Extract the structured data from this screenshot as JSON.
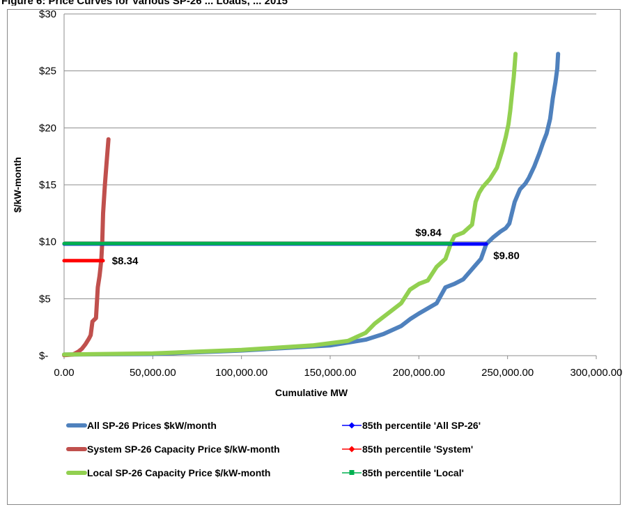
{
  "header": {
    "title_fragment": "Figure 6:  Price Curves for Various SP-26 ... Loads, ... 2015"
  },
  "chart_data": {
    "type": "line",
    "title": "",
    "xlabel": "Cumulative MW",
    "ylabel": "$/kW-month",
    "xlim": [
      0,
      300000
    ],
    "ylim": [
      0,
      30
    ],
    "x_ticks": [
      0,
      50000,
      100000,
      150000,
      200000,
      250000,
      300000
    ],
    "x_tick_labels": [
      "0.00",
      "50,000.00",
      "100,000.00",
      "150,000.00",
      "200,000.00",
      "250,000.00",
      "300,000.00"
    ],
    "y_ticks": [
      0,
      5,
      10,
      15,
      20,
      25,
      30
    ],
    "y_tick_labels": [
      "$-",
      "$5",
      "$10",
      "$15",
      "$20",
      "$25",
      "$30"
    ],
    "grid": "horizontal",
    "legend_position": "bottom",
    "series": [
      {
        "name": "All SP-26 Prices $kW/month",
        "color": "#4F81BD",
        "style": "thick",
        "x": [
          0,
          50000,
          100000,
          150000,
          170000,
          180000,
          190000,
          195000,
          200000,
          210000,
          215000,
          220000,
          225000,
          230000,
          235000,
          238000,
          242000,
          246000,
          249000,
          251000,
          254000,
          257000,
          260000,
          262000,
          265000,
          268000,
          270000,
          272000,
          274000,
          275500,
          277000,
          278000,
          278500
        ],
        "y": [
          0.1,
          0.15,
          0.45,
          0.9,
          1.4,
          1.9,
          2.6,
          3.2,
          3.7,
          4.6,
          6.0,
          6.3,
          6.7,
          7.6,
          8.5,
          9.8,
          10.4,
          10.9,
          11.2,
          11.6,
          13.5,
          14.6,
          15.1,
          15.6,
          16.6,
          17.8,
          18.7,
          19.5,
          20.8,
          22.6,
          24.0,
          25.2,
          26.5
        ]
      },
      {
        "name": "System SP-26 Capacity Price  $/kW-month",
        "color": "#C0504D",
        "style": "thick",
        "x": [
          0,
          5000,
          8000,
          10000,
          12000,
          14000,
          15000,
          16000,
          18000,
          19000,
          20000,
          20500,
          21000,
          21500,
          22000,
          23000,
          24000,
          25000
        ],
        "y": [
          0.05,
          0.1,
          0.35,
          0.6,
          1.0,
          1.5,
          1.8,
          3.0,
          3.3,
          6.0,
          7.0,
          7.7,
          8.5,
          10.0,
          12.5,
          15.0,
          17.0,
          19.0
        ]
      },
      {
        "name": "Local SP-26 Capacity Price  $/kW-month",
        "color": "#92D050",
        "style": "thick",
        "x": [
          0,
          50000,
          100000,
          140000,
          160000,
          170000,
          175000,
          180000,
          185000,
          190000,
          195000,
          200000,
          205000,
          210000,
          215000,
          218000,
          220000,
          225000,
          230000,
          232000,
          234000,
          236000,
          240000,
          244000,
          247000,
          249000,
          250500,
          251500,
          252500,
          253500,
          254000,
          254500
        ],
        "y": [
          0.1,
          0.2,
          0.5,
          0.9,
          1.3,
          2.0,
          2.8,
          3.4,
          4.0,
          4.6,
          5.8,
          6.3,
          6.6,
          7.8,
          8.5,
          9.84,
          10.5,
          10.8,
          11.5,
          13.5,
          14.3,
          14.8,
          15.5,
          16.5,
          18.0,
          19.2,
          20.3,
          21.5,
          23.0,
          24.5,
          25.5,
          26.5
        ]
      },
      {
        "name": "85th percentile 'All SP-26'",
        "color": "#0000FF",
        "style": "reference",
        "x": [
          0,
          238000
        ],
        "y": [
          9.8,
          9.8
        ]
      },
      {
        "name": "85th percentile 'System'",
        "color": "#FF0000",
        "style": "reference",
        "x": [
          0,
          22000
        ],
        "y": [
          8.34,
          8.34
        ]
      },
      {
        "name": "85th percentile 'Local'",
        "color": "#00B050",
        "style": "reference",
        "x": [
          0,
          218000
        ],
        "y": [
          9.84,
          9.84
        ]
      }
    ],
    "annotations": [
      {
        "text": "$8.34",
        "x": 27000,
        "y": 8.34
      },
      {
        "text": "$9.84",
        "x": 198000,
        "y": 10.8
      },
      {
        "text": "$9.80",
        "x": 242000,
        "y": 8.8
      }
    ]
  }
}
